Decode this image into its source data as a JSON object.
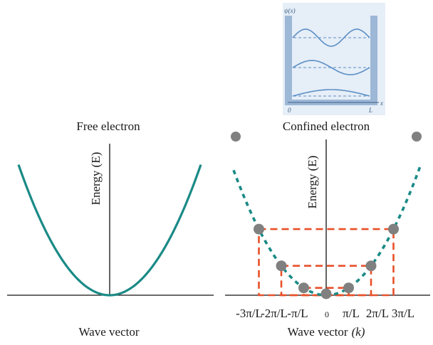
{
  "colors": {
    "curve": "#1a8a86",
    "dashed_box": "#e8502a",
    "dot": "#808080",
    "axis": "#111111",
    "inset_bg": "#e6eef7",
    "inset_wall": "#9db7d6",
    "inset_wave": "#5b8fc6"
  },
  "inset": {
    "y_label": "ψ(x)",
    "origin_label": "0",
    "end_label": "L",
    "x_label": "x"
  },
  "left_panel": {
    "title": "Free electron",
    "y_axis_label": "Energy (E)",
    "x_axis_label": "Wave vector"
  },
  "right_panel": {
    "title": "Confined electron",
    "y_axis_label": "Energy (E)",
    "x_axis_label": "Wave vector",
    "x_axis_symbol": "(k)",
    "tick_labels": [
      "-3π/L",
      "-2π/L",
      "-π/L",
      "0",
      "π/L",
      "2π/L",
      "3π/L"
    ],
    "allowed_k_multiples": [
      -4,
      -3,
      -2,
      -1,
      0,
      1,
      2,
      3,
      4
    ]
  }
}
